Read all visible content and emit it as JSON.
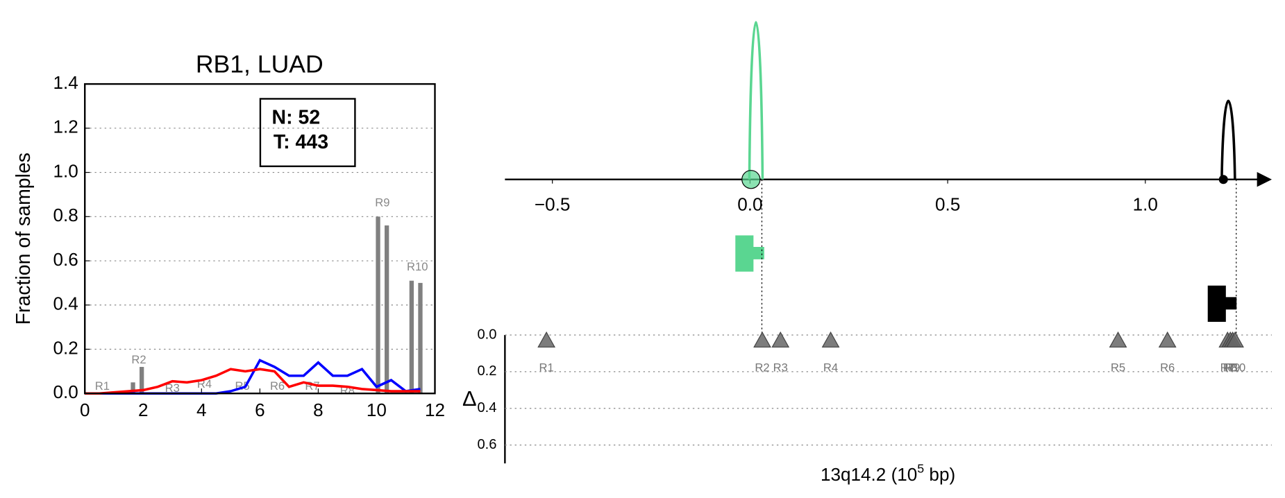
{
  "chart_data": [
    {
      "type": "line",
      "title": "RB1, LUAD",
      "ylabel": "Fraction of samples",
      "xlim": [
        0,
        12
      ],
      "ylim": [
        0,
        1.4
      ],
      "xticks": [
        0,
        2,
        4,
        6,
        8,
        10,
        12
      ],
      "yticks": [
        {
          "value": 0,
          "label": "0.0"
        },
        0.2,
        0.4,
        0.6,
        0.8,
        {
          "value": 1,
          "label": "1.0"
        },
        1.2,
        1.4
      ],
      "grid": true,
      "annotation": [
        "N: 52",
        "T: 443"
      ],
      "x": [
        0,
        0.5,
        1,
        1.5,
        2,
        2.5,
        3,
        3.5,
        4,
        4.5,
        5,
        5.5,
        6,
        6.5,
        7,
        7.5,
        8,
        8.5,
        9,
        9.5,
        10,
        10.5,
        11,
        11.5
      ],
      "series": [
        {
          "color": "#0000ff",
          "values": [
            0,
            0,
            0,
            0,
            0,
            0,
            0,
            0,
            0,
            0,
            0.01,
            0.03,
            0.15,
            0.12,
            0.08,
            0.08,
            0.14,
            0.08,
            0.08,
            0.11,
            0.03,
            0.06,
            0.01,
            0.02
          ]
        },
        {
          "color": "#ff0000",
          "values": [
            0,
            0,
            0.005,
            0.01,
            0.015,
            0.03,
            0.055,
            0.05,
            0.06,
            0.08,
            0.11,
            0.1,
            0.11,
            0.1,
            0.03,
            0.05,
            0.035,
            0.035,
            0.03,
            0.02,
            0.015,
            0.01,
            0.01,
            0.01
          ]
        }
      ],
      "bars": {
        "color": "#808080",
        "x": [
          1.65,
          1.95,
          10.05,
          10.35,
          11.2,
          11.5
        ],
        "values": [
          0.05,
          0.12,
          0.8,
          0.76,
          0.51,
          0.5
        ]
      },
      "regions": {
        "labels": [
          "R1",
          "R2",
          "R3",
          "R4",
          "R5",
          "R6",
          "R7",
          "R8",
          "R9",
          "R10"
        ],
        "x": [
          0.6,
          1.85,
          3.0,
          4.1,
          5.4,
          6.6,
          7.8,
          9.0,
          10.2,
          11.4
        ],
        "y": [
          0.03,
          0.15,
          0.02,
          0.04,
          0.03,
          0.03,
          0.03,
          0.01,
          0.86,
          0.57
        ]
      }
    },
    {
      "type": "scatter",
      "xlabel": [
        "13q14.2 (10",
        "5",
        " bp)"
      ],
      "ylabel": "Δ",
      "xlim": [
        -0.62,
        1.32
      ],
      "ylim": [
        0,
        0.7
      ],
      "y_inverted": true,
      "xticks": [
        {
          "value": -0.5,
          "label": "−0.5"
        },
        {
          "value": 0,
          "label": "0.0"
        },
        0.5,
        {
          "value": 1,
          "label": "1.0"
        }
      ],
      "yticks": [
        {
          "value": 0,
          "label": "0.0"
        },
        0.2,
        0.4,
        0.6
      ],
      "grid": true,
      "points": {
        "color": "#666666",
        "labels": [
          "R1",
          "R2",
          "R3",
          "R4",
          "R5",
          "R6",
          "R7",
          "R8",
          "R9",
          "R10"
        ],
        "x": [
          -0.515,
          0.031,
          0.077,
          0.204,
          0.931,
          1.056,
          1.208,
          1.215,
          1.221,
          1.227
        ],
        "values": [
          0.03,
          0.03,
          0.03,
          0.03,
          0.03,
          0.03,
          0.03,
          0.03,
          0.03,
          0.03
        ]
      },
      "peaks": {
        "x": [
          0.015,
          1.21
        ],
        "colors": [
          "#5ad691",
          "#000000"
        ]
      },
      "boundaries": [
        0.03,
        1.23
      ]
    }
  ]
}
